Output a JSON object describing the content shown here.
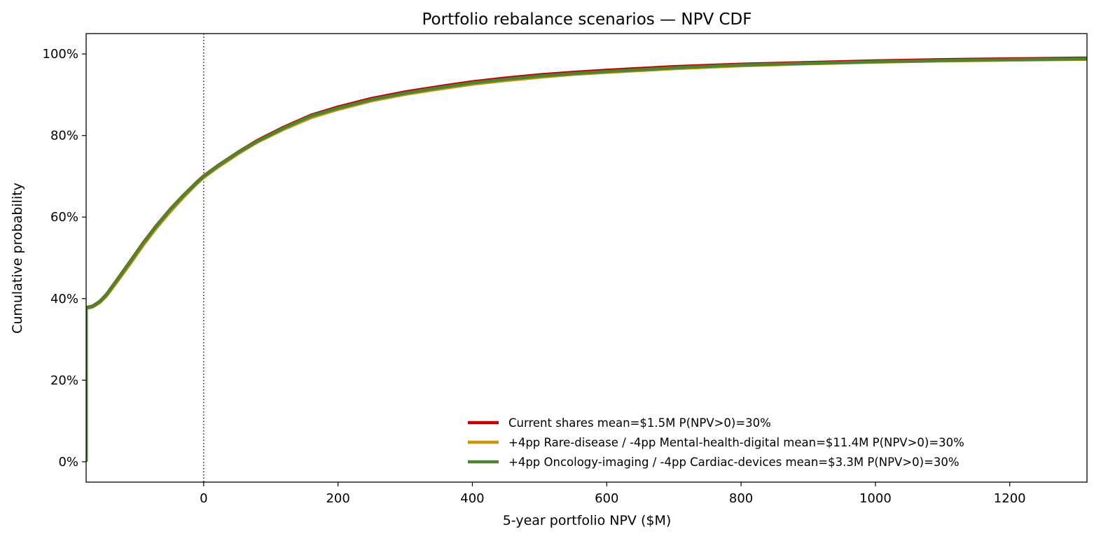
{
  "chart_data": {
    "type": "line",
    "title": "Portfolio rebalance scenarios — NPV CDF",
    "xlabel": "5-year portfolio NPV  ($M)",
    "ylabel": "Cumulative probability",
    "xlim": [
      -175,
      1315
    ],
    "ylim": [
      -0.05,
      1.05
    ],
    "xticks": [
      0,
      200,
      400,
      600,
      800,
      1000,
      1200
    ],
    "xtick_labels": [
      "0",
      "200",
      "400",
      "600",
      "800",
      "1000",
      "1200"
    ],
    "yticks": [
      0,
      0.2,
      0.4,
      0.6,
      0.8,
      1.0
    ],
    "ytick_labels": [
      "0%",
      "20%",
      "40%",
      "60%",
      "80%",
      "100%"
    ],
    "reference_line": {
      "x": 0,
      "style": "dotted"
    },
    "grid": false,
    "legend_position": "lower-right",
    "series": [
      {
        "name": "Current shares   mean=$1.5M   P(NPV>0)=30%",
        "color": "#c00000",
        "x": [
          -175,
          -175,
          -165,
          -155,
          -145,
          -130,
          -110,
          -90,
          -70,
          -50,
          -30,
          -10,
          0,
          20,
          50,
          80,
          120,
          160,
          200,
          250,
          300,
          350,
          400,
          450,
          500,
          550,
          600,
          700,
          800,
          900,
          1000,
          1100,
          1200,
          1315
        ],
        "y": [
          0.0,
          0.378,
          0.382,
          0.393,
          0.41,
          0.444,
          0.49,
          0.537,
          0.58,
          0.619,
          0.654,
          0.686,
          0.701,
          0.725,
          0.758,
          0.788,
          0.821,
          0.85,
          0.87,
          0.891,
          0.907,
          0.92,
          0.932,
          0.941,
          0.949,
          0.955,
          0.96,
          0.969,
          0.975,
          0.979,
          0.983,
          0.986,
          0.988,
          0.99
        ]
      },
      {
        "name": "+4pp Rare-disease / -4pp Mental-health-digital   mean=$11.4M   P(NPV>0)=30%",
        "color": "#c8960a",
        "x": [
          -175,
          -175,
          -165,
          -155,
          -145,
          -130,
          -110,
          -90,
          -70,
          -50,
          -30,
          -10,
          0,
          20,
          50,
          80,
          120,
          160,
          200,
          250,
          300,
          350,
          400,
          450,
          500,
          550,
          600,
          700,
          800,
          900,
          1000,
          1100,
          1200,
          1315
        ],
        "y": [
          0.0,
          0.376,
          0.38,
          0.39,
          0.406,
          0.439,
          0.484,
          0.531,
          0.574,
          0.613,
          0.649,
          0.682,
          0.697,
          0.721,
          0.754,
          0.784,
          0.816,
          0.844,
          0.864,
          0.885,
          0.901,
          0.914,
          0.926,
          0.935,
          0.943,
          0.95,
          0.955,
          0.964,
          0.971,
          0.976,
          0.98,
          0.983,
          0.985,
          0.987
        ]
      },
      {
        "name": "+4pp Oncology-imaging / -4pp Cardiac-devices   mean=$3.3M   P(NPV>0)=30%",
        "color": "#4f8232",
        "x": [
          -175,
          -175,
          -165,
          -155,
          -145,
          -130,
          -110,
          -90,
          -70,
          -50,
          -30,
          -10,
          0,
          20,
          50,
          80,
          120,
          160,
          200,
          250,
          300,
          350,
          400,
          450,
          500,
          550,
          600,
          700,
          800,
          900,
          1000,
          1100,
          1200,
          1315
        ],
        "y": [
          0.0,
          0.377,
          0.381,
          0.392,
          0.409,
          0.443,
          0.489,
          0.536,
          0.579,
          0.618,
          0.653,
          0.685,
          0.7,
          0.724,
          0.757,
          0.786,
          0.819,
          0.848,
          0.867,
          0.888,
          0.904,
          0.917,
          0.929,
          0.938,
          0.946,
          0.952,
          0.957,
          0.966,
          0.973,
          0.977,
          0.981,
          0.984,
          0.986,
          0.988
        ]
      }
    ]
  }
}
